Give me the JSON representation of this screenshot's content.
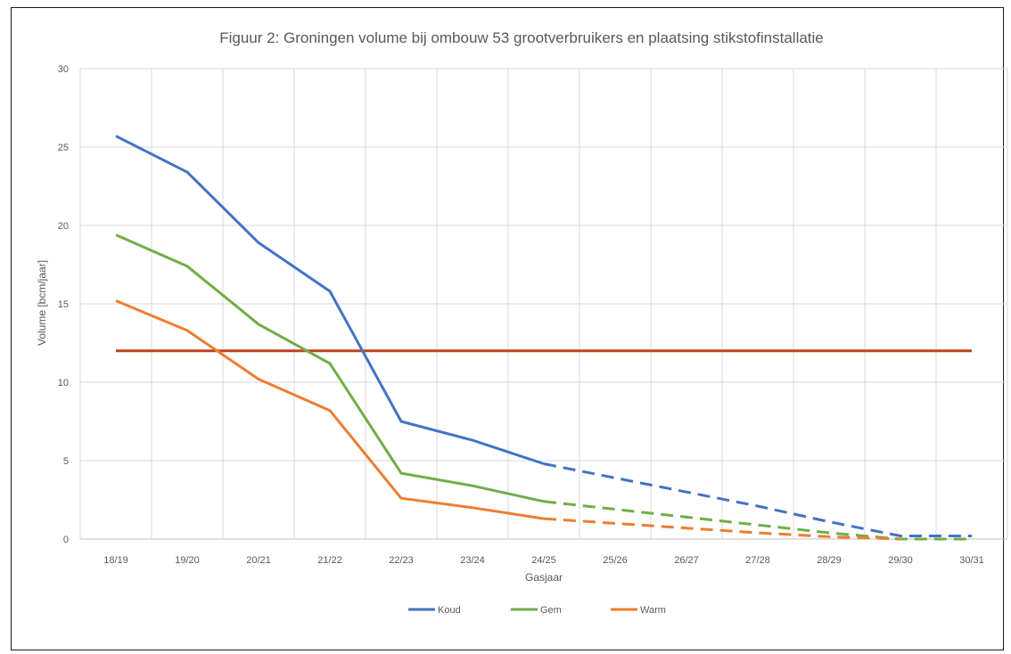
{
  "chart_data": {
    "type": "line",
    "title": "Figuur 2: Groningen volume  bij ombouw 53 grootverbruikers en plaatsing stikstofinstallatie",
    "xlabel": "Gasjaar",
    "ylabel": "Volume [bcm/jaar]",
    "ylim": [
      0,
      30
    ],
    "yticks": [
      0,
      5,
      10,
      15,
      20,
      25,
      30
    ],
    "grid": true,
    "legend_position": "bottom",
    "categories": [
      "18/19",
      "19/20",
      "20/21",
      "21/22",
      "22/23",
      "23/24",
      "24/25",
      "25/26",
      "26/27",
      "27/28",
      "28/29",
      "29/30",
      "30/31"
    ],
    "solid_until_index": 6,
    "series": [
      {
        "name": "Koud",
        "color": "#4472c4",
        "values": [
          25.7,
          23.4,
          18.9,
          15.8,
          7.5,
          6.3,
          4.8,
          3.9,
          3.0,
          2.1,
          1.1,
          0.2,
          0.2
        ]
      },
      {
        "name": "Gem",
        "color": "#70ad47",
        "values": [
          19.4,
          17.4,
          13.7,
          11.2,
          4.2,
          3.4,
          2.4,
          1.9,
          1.4,
          0.9,
          0.4,
          0.0,
          0.0
        ]
      },
      {
        "name": "Warm",
        "color": "#ed7d31",
        "values": [
          15.2,
          13.3,
          10.2,
          8.2,
          2.6,
          2.0,
          1.3,
          1.0,
          0.7,
          0.4,
          0.15,
          0.0,
          null
        ]
      }
    ],
    "reference_line": {
      "value": 12,
      "color": "#c0431f"
    }
  }
}
